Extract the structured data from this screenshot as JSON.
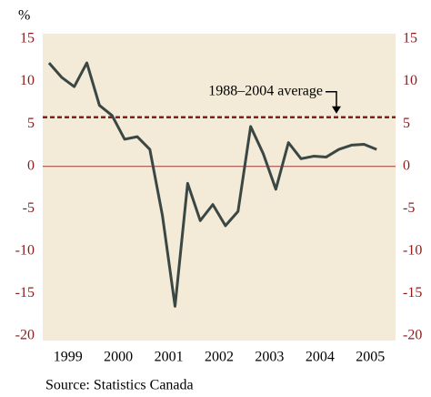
{
  "chart_data": {
    "type": "line",
    "y_unit": "%",
    "source": "Source: Statistics Canada",
    "x": [
      1999.125,
      1999.375,
      1999.625,
      1999.875,
      2000.125,
      2000.375,
      2000.625,
      2000.875,
      2001.125,
      2001.375,
      2001.625,
      2001.875,
      2002.125,
      2002.375,
      2002.625,
      2002.875,
      2003.125,
      2003.375,
      2003.625,
      2003.875,
      2004.125,
      2004.375,
      2004.625,
      2004.875,
      2005.125,
      2005.375,
      2005.625
    ],
    "values": [
      12.2,
      10.5,
      9.4,
      12.2,
      7.2,
      6.0,
      3.2,
      3.5,
      2.0,
      -5.8,
      -16.5,
      -2.0,
      -6.4,
      -4.5,
      -7.0,
      -5.3,
      4.7,
      1.5,
      -2.7,
      2.8,
      0.9,
      1.2,
      1.1,
      2.0,
      2.5,
      2.6,
      2.0
    ],
    "color": "#3b4744",
    "xlim": [
      1999,
      2006
    ],
    "xticks": [
      {
        "value": 1999.5,
        "label": "1999"
      },
      {
        "value": 2000.5,
        "label": "2000"
      },
      {
        "value": 2001.5,
        "label": "2001"
      },
      {
        "value": 2002.5,
        "label": "2002"
      },
      {
        "value": 2003.5,
        "label": "2003"
      },
      {
        "value": 2004.5,
        "label": "2004"
      },
      {
        "value": 2005.5,
        "label": "2005"
      }
    ],
    "ylim": [
      -20,
      15
    ],
    "yticks": [
      15,
      10,
      5,
      0,
      -5,
      -10,
      -15,
      -20
    ],
    "average": {
      "label": "1988–2004 average",
      "value": 5.8,
      "color": "#8b1c1c"
    }
  }
}
